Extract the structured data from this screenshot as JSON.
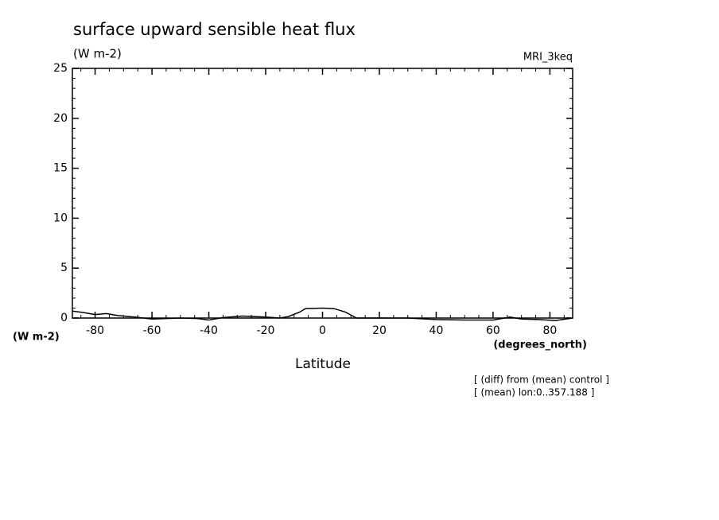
{
  "chart_data": {
    "type": "line",
    "title": "surface upward sensible heat flux",
    "subtitle": "(W m-2)",
    "model_label": "MRI_3keq",
    "y_unit_label": "(W m-2)",
    "x_unit_label": "(degrees_north)",
    "x_label": "Latitude",
    "annotations": [
      "[ (diff) from (mean) control ]",
      "[ (mean) lon:0..357.188 ]"
    ],
    "x": [
      -88,
      -84,
      -80,
      -76,
      -72,
      -66,
      -60,
      -55,
      -50,
      -44,
      -40,
      -35,
      -28,
      -20,
      -15,
      -12,
      -8,
      -6,
      0,
      4,
      8,
      12,
      20,
      30,
      40,
      50,
      60,
      66,
      70,
      76,
      82,
      88
    ],
    "series": [
      {
        "name": "MRI_3keq",
        "color": "#000000",
        "values": [
          0.7,
          0.55,
          0.35,
          0.45,
          0.25,
          0.1,
          -0.1,
          -0.05,
          0.0,
          -0.05,
          -0.2,
          0.05,
          0.2,
          0.1,
          0.0,
          0.15,
          0.6,
          0.95,
          1.0,
          0.95,
          0.6,
          0.0,
          0.0,
          0.0,
          -0.15,
          -0.2,
          -0.2,
          0.1,
          -0.1,
          -0.15,
          -0.25,
          0.0
        ]
      }
    ],
    "xlim": [
      -88,
      88
    ],
    "ylim": [
      0,
      25
    ],
    "xticks": [
      -80,
      -60,
      -40,
      -20,
      0,
      20,
      40,
      60,
      80
    ],
    "yticks": [
      0,
      5,
      10,
      15,
      20,
      25
    ]
  }
}
